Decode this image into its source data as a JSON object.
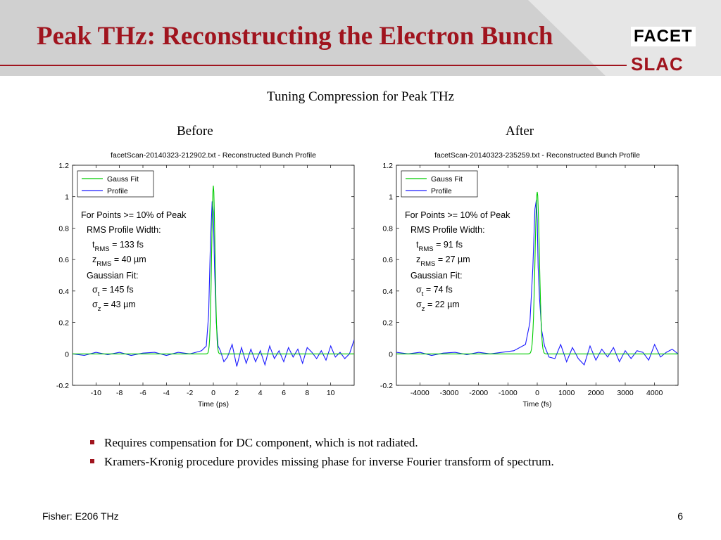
{
  "slide": {
    "title": "Peak THz: Reconstructing the Electron Bunch",
    "subtitle": "Tuning Compression for Peak THz",
    "logo_top": "FACET",
    "logo_bottom": "SLAC",
    "footer_left": "Fisher: E206 THz",
    "page_number": "6",
    "bullets": [
      "Requires compensation for DC component, which is not radiated.",
      "Kramers-Kronig procedure provides missing phase for inverse Fourier transform of spectrum."
    ],
    "colors": {
      "accent": "#a0141e",
      "header_bg": "#d0d0d0"
    }
  },
  "panels": [
    {
      "label": "Before"
    },
    {
      "label": "After"
    }
  ],
  "chart_data": [
    {
      "type": "line",
      "title": "facetScan-20140323-212902.txt - Reconstructed Bunch Profile",
      "xlabel": "Time (ps)",
      "ylabel": "",
      "xlim": [
        -12,
        12
      ],
      "ylim": [
        -0.2,
        1.2
      ],
      "xticks": [
        -10,
        -8,
        -6,
        -4,
        -2,
        0,
        2,
        4,
        6,
        8,
        10
      ],
      "yticks": [
        -0.2,
        0,
        0.2,
        0.4,
        0.6,
        0.8,
        1,
        1.2
      ],
      "grid": false,
      "legend": {
        "position": "top-left",
        "entries": [
          "Gauss Fit",
          "Profile"
        ]
      },
      "annotations": [
        {
          "text": "For Points >= 10% of Peak"
        },
        {
          "text": "RMS Profile Width:"
        },
        {
          "main": "t",
          "sub": "RMS",
          "rest": " = 133 fs"
        },
        {
          "main": "z",
          "sub": "RMS",
          "rest": " =  40 µm"
        },
        {
          "text": "Gaussian Fit:"
        },
        {
          "main": "σ",
          "sub": "t",
          "rest": " = 145 fs"
        },
        {
          "main": "σ",
          "sub": "z",
          "rest": " =  43 µm"
        }
      ],
      "series": [
        {
          "name": "Gauss Fit",
          "color": "#00cc00",
          "kind": "gauss",
          "mu": 0,
          "sigma": 0.145,
          "amp": 1.07
        },
        {
          "name": "Profile",
          "color": "#1a1aff",
          "x": [
            -12,
            -11,
            -10,
            -9,
            -8,
            -7,
            -6,
            -5,
            -4,
            -3,
            -2,
            -1.5,
            -1,
            -0.6,
            -0.4,
            -0.25,
            -0.1,
            0,
            0.1,
            0.25,
            0.4,
            0.6,
            0.9,
            1.2,
            1.6,
            2,
            2.4,
            2.8,
            3.2,
            3.6,
            4,
            4.4,
            4.8,
            5.2,
            5.6,
            6,
            6.4,
            6.8,
            7.2,
            7.6,
            8,
            8.4,
            8.8,
            9.2,
            9.6,
            10,
            10.4,
            10.8,
            11.2,
            11.6,
            12
          ],
          "y": [
            0,
            -0.01,
            0.01,
            -0.005,
            0.01,
            -0.01,
            0.005,
            0.01,
            -0.01,
            0.01,
            0,
            0.01,
            0.02,
            0.05,
            0.25,
            0.7,
            0.97,
            0.9,
            0.55,
            0.2,
            0.05,
            0.02,
            -0.05,
            -0.02,
            0.06,
            -0.08,
            0.04,
            -0.06,
            0.03,
            -0.05,
            0.02,
            -0.07,
            0.05,
            -0.03,
            0.02,
            -0.05,
            0.04,
            -0.02,
            0.03,
            -0.06,
            0.04,
            0.01,
            -0.03,
            0.02,
            -0.04,
            0.05,
            -0.02,
            0.01,
            -0.03,
            0,
            0.09
          ]
        }
      ]
    },
    {
      "type": "line",
      "title": "facetScan-20140323-235259.txt - Reconstructed Bunch Profile",
      "xlabel": "Time (fs)",
      "ylabel": "",
      "xlim": [
        -4800,
        4800
      ],
      "ylim": [
        -0.2,
        1.2
      ],
      "xticks": [
        -4000,
        -3000,
        -2000,
        -1000,
        0,
        1000,
        2000,
        3000,
        4000
      ],
      "yticks": [
        -0.2,
        0,
        0.2,
        0.4,
        0.6,
        0.8,
        1,
        1.2
      ],
      "grid": false,
      "legend": {
        "position": "top-left",
        "entries": [
          "Gauss Fit",
          "Profile"
        ]
      },
      "annotations": [
        {
          "text": "For Points >= 10% of Peak"
        },
        {
          "text": "RMS Profile Width:"
        },
        {
          "main": "t",
          "sub": "RMS",
          "rest": " =  91 fs"
        },
        {
          "main": "z",
          "sub": "RMS",
          "rest": " =  27 µm"
        },
        {
          "text": "Gaussian Fit:"
        },
        {
          "main": "σ",
          "sub": "t",
          "rest": " =  74 fs"
        },
        {
          "main": "σ",
          "sub": "z",
          "rest": " =  22 µm"
        }
      ],
      "series": [
        {
          "name": "Gauss Fit",
          "color": "#00cc00",
          "kind": "gauss",
          "mu": 0,
          "sigma": 74,
          "amp": 1.03
        },
        {
          "name": "Profile",
          "color": "#1a1aff",
          "x": [
            -4800,
            -4400,
            -4000,
            -3600,
            -3200,
            -2800,
            -2400,
            -2000,
            -1600,
            -1200,
            -800,
            -400,
            -250,
            -150,
            -80,
            -30,
            0,
            30,
            80,
            150,
            250,
            400,
            600,
            800,
            1000,
            1200,
            1400,
            1600,
            1800,
            2000,
            2200,
            2400,
            2600,
            2800,
            3000,
            3200,
            3400,
            3600,
            3800,
            4000,
            4200,
            4400,
            4600,
            4800
          ],
          "y": [
            0.01,
            0,
            0.01,
            -0.01,
            0.005,
            0.01,
            -0.005,
            0.01,
            0,
            0.01,
            0.02,
            0.06,
            0.2,
            0.55,
            0.92,
            0.98,
            0.85,
            0.55,
            0.35,
            0.15,
            0.05,
            -0.02,
            -0.03,
            0.06,
            -0.05,
            0.04,
            -0.03,
            -0.07,
            0.05,
            -0.04,
            0.03,
            -0.02,
            0.04,
            -0.05,
            0.02,
            -0.03,
            0.02,
            0.01,
            -0.04,
            0.06,
            -0.02,
            0.01,
            0.03,
            0
          ]
        }
      ]
    }
  ]
}
